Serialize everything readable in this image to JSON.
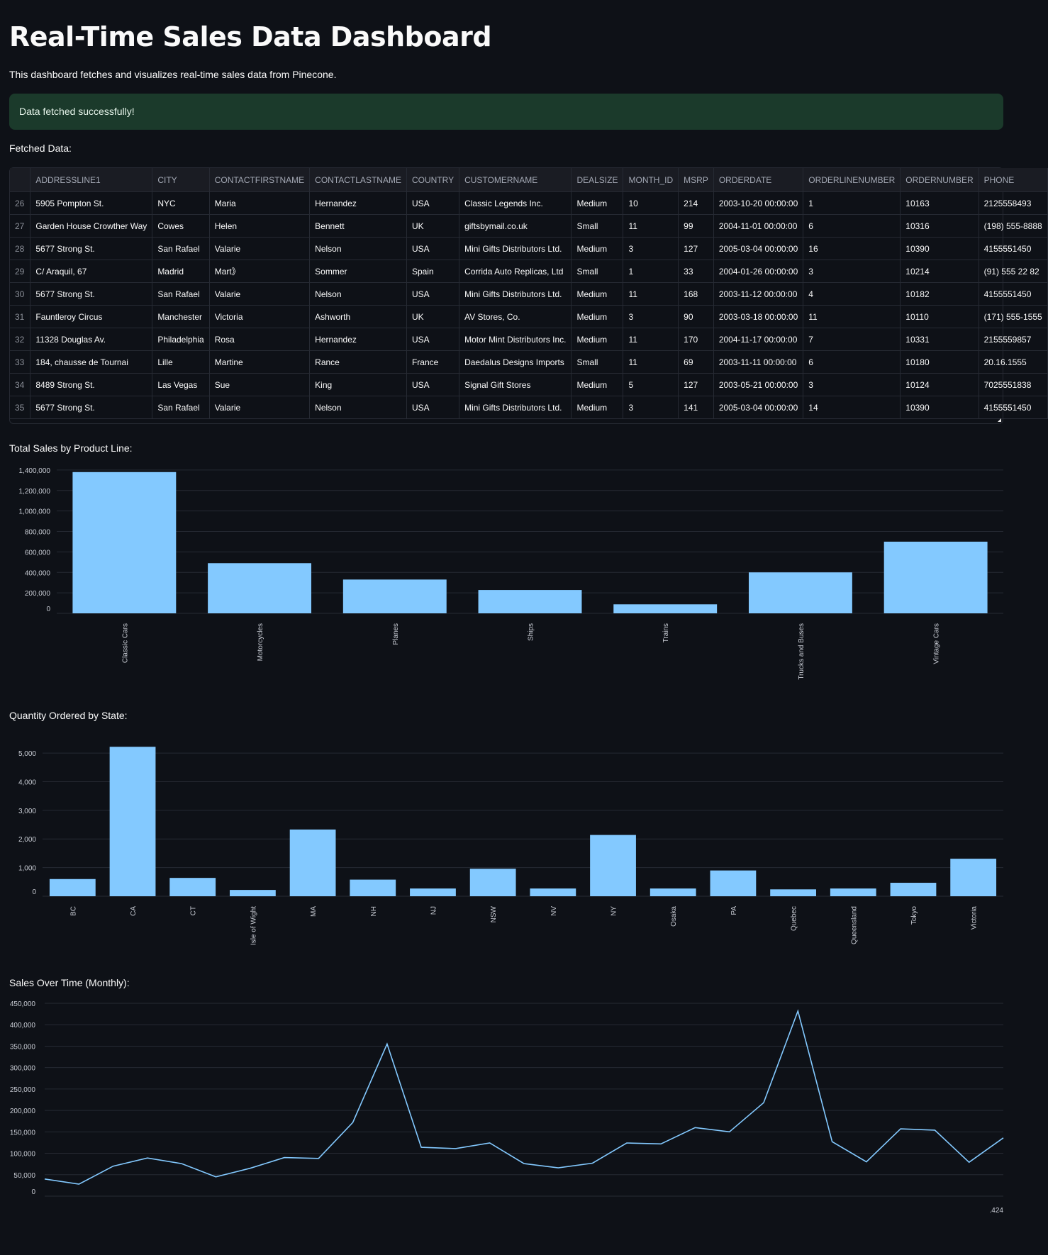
{
  "page": {
    "title": "Real-Time Sales Data Dashboard",
    "subtitle": "This dashboard fetches and visualizes real-time sales data from Pinecone.",
    "alert": "Data fetched successfully!",
    "fetched_label": "Fetched Data:"
  },
  "colors": {
    "background": "#0e1117",
    "bar": "#83c9ff",
    "alert_bg": "#1b3a2b",
    "grid": "#262a33"
  },
  "table": {
    "columns": [
      "",
      "ADDRESSLINE1",
      "CITY",
      "CONTACTFIRSTNAME",
      "CONTACTLASTNAME",
      "COUNTRY",
      "CUSTOMERNAME",
      "DEALSIZE",
      "MONTH_ID",
      "MSRP",
      "ORDERDATE",
      "ORDERLINENUMBER",
      "ORDERNUMBER",
      "PHONE"
    ],
    "rows": [
      [
        "26",
        "5905 Pompton St.",
        "NYC",
        "Maria",
        "Hernandez",
        "USA",
        "Classic Legends Inc.",
        "Medium",
        "10",
        "214",
        "2003-10-20 00:00:00",
        "1",
        "10163",
        "2125558493"
      ],
      [
        "27",
        "Garden House Crowther Way",
        "Cowes",
        "Helen",
        "Bennett",
        "UK",
        "giftsbymail.co.uk",
        "Small",
        "11",
        "99",
        "2004-11-01 00:00:00",
        "6",
        "10316",
        "(198) 555-8888"
      ],
      [
        "28",
        "5677 Strong St.",
        "San Rafael",
        "Valarie",
        "Nelson",
        "USA",
        "Mini Gifts Distributors Ltd.",
        "Medium",
        "3",
        "127",
        "2005-03-04 00:00:00",
        "16",
        "10390",
        "4155551450"
      ],
      [
        "29",
        "C/ Araquil, 67",
        "Madrid",
        "Mart》",
        "Sommer",
        "Spain",
        "Corrida Auto Replicas, Ltd",
        "Small",
        "1",
        "33",
        "2004-01-26 00:00:00",
        "3",
        "10214",
        "(91) 555 22 82"
      ],
      [
        "30",
        "5677 Strong St.",
        "San Rafael",
        "Valarie",
        "Nelson",
        "USA",
        "Mini Gifts Distributors Ltd.",
        "Medium",
        "11",
        "168",
        "2003-11-12 00:00:00",
        "4",
        "10182",
        "4155551450"
      ],
      [
        "31",
        "Fauntleroy Circus",
        "Manchester",
        "Victoria",
        "Ashworth",
        "UK",
        "AV Stores, Co.",
        "Medium",
        "3",
        "90",
        "2003-03-18 00:00:00",
        "11",
        "10110",
        "(171) 555-1555"
      ],
      [
        "32",
        "11328 Douglas Av.",
        "Philadelphia",
        "Rosa",
        "Hernandez",
        "USA",
        "Motor Mint Distributors Inc.",
        "Medium",
        "11",
        "170",
        "2004-11-17 00:00:00",
        "7",
        "10331",
        "2155559857"
      ],
      [
        "33",
        "184, chausse de Tournai",
        "Lille",
        "Martine",
        "Rance",
        "France",
        "Daedalus Designs Imports",
        "Small",
        "11",
        "69",
        "2003-11-11 00:00:00",
        "6",
        "10180",
        "20.16.1555"
      ],
      [
        "34",
        "8489 Strong St.",
        "Las Vegas",
        "Sue",
        "King",
        "USA",
        "Signal Gift Stores",
        "Medium",
        "5",
        "127",
        "2003-05-21 00:00:00",
        "3",
        "10124",
        "7025551838"
      ],
      [
        "35",
        "5677 Strong St.",
        "San Rafael",
        "Valarie",
        "Nelson",
        "USA",
        "Mini Gifts Distributors Ltd.",
        "Medium",
        "3",
        "141",
        "2005-03-04 00:00:00",
        "14",
        "10390",
        "4155551450"
      ]
    ]
  },
  "chart_data": [
    {
      "type": "bar",
      "title": "Total Sales by Product Line:",
      "categories": [
        "Classic Cars",
        "Motorcycles",
        "Planes",
        "Ships",
        "Trains",
        "Trucks and Buses",
        "Vintage Cars"
      ],
      "values": [
        1380000,
        490000,
        330000,
        228000,
        88000,
        400000,
        700000
      ],
      "yticks": [
        "0",
        "200,000",
        "400,000",
        "600,000",
        "800,000",
        "1,000,000",
        "1,200,000",
        "1,400,000"
      ],
      "ylim": [
        0,
        1420000
      ],
      "grid": true
    },
    {
      "type": "bar",
      "title": "Quantity Ordered by State:",
      "categories": [
        "BC",
        "CA",
        "CT",
        "Isle of Wight",
        "MA",
        "NH",
        "NJ",
        "NSW",
        "NV",
        "NY",
        "Osaka",
        "PA",
        "Quebec",
        "Queensland",
        "Tokyo",
        "Victoria"
      ],
      "values": [
        600,
        5220,
        640,
        220,
        2330,
        580,
        270,
        960,
        270,
        2140,
        270,
        900,
        240,
        270,
        470,
        1310
      ],
      "yticks": [
        "0",
        "1,000",
        "2,000",
        "3,000",
        "4,000",
        "5,000"
      ],
      "ylim": [
        0,
        5300
      ],
      "grid": true
    },
    {
      "type": "line",
      "title": "Sales Over Time (Monthly):",
      "values": [
        40000,
        28000,
        70000,
        89000,
        76000,
        45000,
        65000,
        90000,
        88000,
        172000,
        355000,
        114000,
        111000,
        124000,
        76000,
        66000,
        77000,
        124000,
        122000,
        160000,
        150000,
        218000,
        432000,
        127000,
        80000,
        157000,
        154000,
        79000,
        136000
      ],
      "yticks": [
        "0",
        "50,000",
        "100,000",
        "150,000",
        "200,000",
        "250,000",
        "300,000",
        "350,000",
        "400,000",
        "450,000"
      ],
      "ylim": [
        0,
        450000
      ],
      "corner_label": ".424",
      "grid": true
    }
  ]
}
